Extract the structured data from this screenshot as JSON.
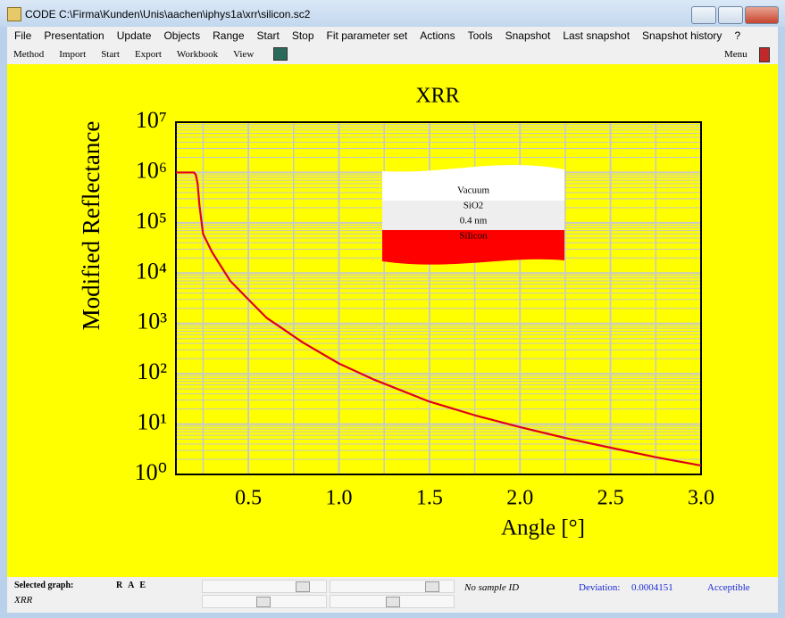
{
  "window": {
    "title": "CODE C:\\Firma\\Kunden\\Unis\\aachen\\iphys1a\\xrr\\silicon.sc2"
  },
  "menu": [
    "File",
    "Presentation",
    "Update",
    "Objects",
    "Range",
    "Start",
    "Stop",
    "Fit parameter set",
    "Actions",
    "Tools",
    "Snapshot",
    "Last snapshot",
    "Snapshot history",
    "?"
  ],
  "toolbar": {
    "left": [
      "Method",
      "Import",
      "Start",
      "Export",
      "Workbook",
      "View"
    ],
    "right": "Menu"
  },
  "chart_data": {
    "type": "line",
    "title": "XRR",
    "x_label": "Angle [°]",
    "y_label": "Modified Reflectance",
    "x": [
      0.1,
      0.15,
      0.2,
      0.21,
      0.22,
      0.23,
      0.25,
      0.3,
      0.4,
      0.5,
      0.6,
      0.7,
      0.8,
      1.0,
      1.2,
      1.5,
      1.75,
      2.0,
      2.25,
      2.5,
      2.75,
      3.0
    ],
    "values": [
      1000000,
      1000000,
      1000000,
      900000,
      600000,
      220000,
      60000,
      26000,
      7000,
      3000,
      1300,
      740,
      420,
      160,
      75,
      28,
      15,
      8.7,
      5.3,
      3.4,
      2.2,
      1.5
    ],
    "color": "#e0001a",
    "log_y": true,
    "grid": true,
    "xlim": [
      0.1,
      3.0
    ],
    "xticks": [
      0.5,
      {
        "value": 1,
        "label": "1.0"
      },
      1.5,
      {
        "value": 2,
        "label": "2.0"
      },
      2.5,
      {
        "value": 3,
        "label": "3.0"
      }
    ],
    "ylim": [
      1,
      10000000
    ],
    "yticks": [
      {
        "value": 1,
        "label": "10⁰"
      },
      {
        "value": 10,
        "label": "10¹"
      },
      {
        "value": 100,
        "label": "10²"
      },
      {
        "value": 1000,
        "label": "10³"
      },
      {
        "value": 10000,
        "label": "10⁴"
      },
      {
        "value": 100000,
        "label": "10⁵"
      },
      {
        "value": 1000000,
        "label": "10⁶"
      },
      {
        "value": 10000000,
        "label": "10⁷"
      }
    ],
    "layers": [
      "Vacuum",
      "SiO2",
      "0.4 nm",
      "Silicon"
    ]
  },
  "status": {
    "selected_label": "Selected graph:",
    "graph_buttons": "R A E",
    "selected_graph": "XRR",
    "sample_id": "No sample ID",
    "deviation_label": "Deviation:",
    "deviation": 0.0004151,
    "rating": "Acceptible"
  }
}
